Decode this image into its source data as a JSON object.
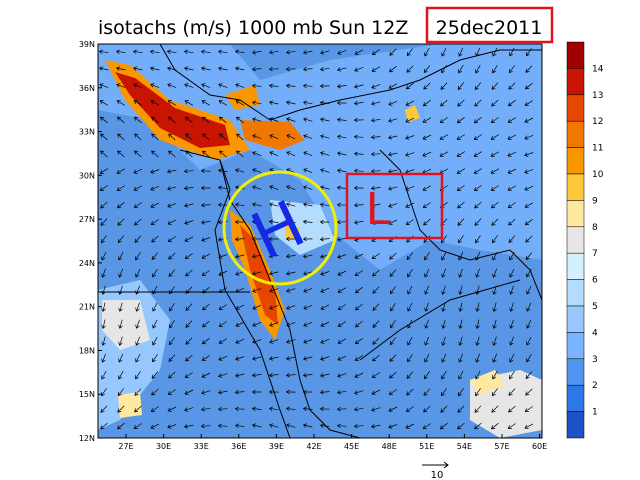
{
  "title": "isotachs (m/s) 1000 mb Sun 12Z",
  "date": "25dec2011",
  "latitude_labels": [
    "39N",
    "36N",
    "33N",
    "30N",
    "27N",
    "24N",
    "21N",
    "18N",
    "15N",
    "12N"
  ],
  "longitude_labels": [
    "27E",
    "30E",
    "33E",
    "36E",
    "39E",
    "42E",
    "45E",
    "48E",
    "51E",
    "54E",
    "57E",
    "60E"
  ],
  "colorbar_labels": [
    "14",
    "13",
    "12",
    "11",
    "10",
    "9",
    "8",
    "7",
    "6",
    "5",
    "4",
    "3",
    "2",
    "1"
  ],
  "reference_vector": "10",
  "annotations": {
    "high": "H",
    "low": "L"
  }
}
